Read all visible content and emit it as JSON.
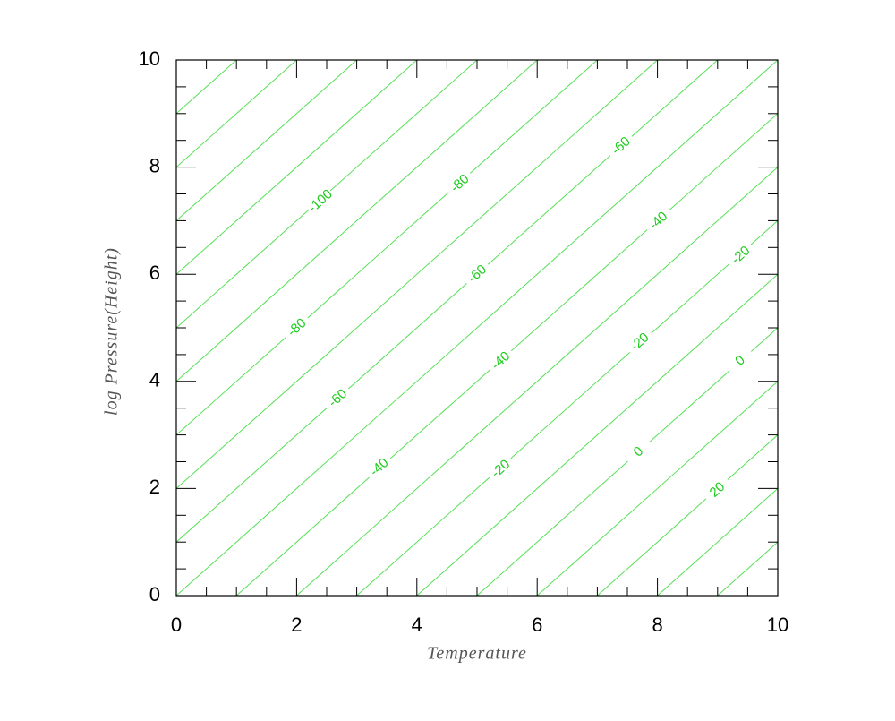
{
  "chart_data": {
    "type": "isolines",
    "xlabel": "Temperature",
    "ylabel": "log Pressure(Height)",
    "xlim": [
      0,
      10
    ],
    "ylim": [
      0,
      10
    ],
    "xticks": [
      0,
      2,
      4,
      6,
      8,
      10
    ],
    "yticks": [
      0,
      2,
      4,
      6,
      8,
      10
    ],
    "xminorticks": [
      0.5,
      1,
      1.5,
      2.5,
      3,
      3.5,
      4.5,
      5,
      5.5,
      6.5,
      7,
      7.5,
      8.5,
      9,
      9.5
    ],
    "yminorticks": [
      0.5,
      1,
      1.5,
      2.5,
      3,
      3.5,
      4.5,
      5,
      5.5,
      6.5,
      7,
      7.5,
      8.5,
      9,
      9.5
    ],
    "line_color": "#55e055",
    "label_color": "#1ccc1c",
    "lines": [
      {
        "x": [
          0,
          1
        ],
        "y": [
          9,
          10
        ]
      },
      {
        "x": [
          0,
          2
        ],
        "y": [
          8,
          10
        ]
      },
      {
        "x": [
          0,
          3
        ],
        "y": [
          7,
          10
        ]
      },
      {
        "x": [
          0,
          4
        ],
        "y": [
          6,
          10
        ]
      },
      {
        "x": [
          0,
          5
        ],
        "y": [
          5,
          10
        ]
      },
      {
        "x": [
          0,
          6
        ],
        "y": [
          4,
          10
        ]
      },
      {
        "x": [
          0,
          7
        ],
        "y": [
          3,
          10
        ]
      },
      {
        "x": [
          0,
          8
        ],
        "y": [
          2,
          10
        ]
      },
      {
        "x": [
          0,
          9
        ],
        "y": [
          1,
          10
        ]
      },
      {
        "x": [
          0,
          10
        ],
        "y": [
          0,
          10
        ]
      },
      {
        "x": [
          1,
          10
        ],
        "y": [
          0,
          9
        ]
      },
      {
        "x": [
          2,
          10
        ],
        "y": [
          0,
          8
        ]
      },
      {
        "x": [
          3,
          10
        ],
        "y": [
          0,
          7
        ]
      },
      {
        "x": [
          4,
          10
        ],
        "y": [
          0,
          6
        ]
      },
      {
        "x": [
          5,
          10
        ],
        "y": [
          0,
          5
        ]
      },
      {
        "x": [
          6,
          10
        ],
        "y": [
          0,
          4
        ]
      },
      {
        "x": [
          7,
          10
        ],
        "y": [
          0,
          3
        ]
      },
      {
        "x": [
          8,
          10
        ],
        "y": [
          0,
          2
        ]
      },
      {
        "x": [
          9,
          10
        ],
        "y": [
          0,
          1
        ]
      }
    ],
    "labels": [
      {
        "text": "-100",
        "x": 2.4,
        "y": 7.36
      },
      {
        "text": "-80",
        "x": 4.72,
        "y": 7.69
      },
      {
        "text": "-60",
        "x": 7.4,
        "y": 8.39
      },
      {
        "text": "-40",
        "x": 8.02,
        "y": 6.99
      },
      {
        "text": "-20",
        "x": 9.39,
        "y": 6.35
      },
      {
        "text": "-80",
        "x": 2.01,
        "y": 5.0
      },
      {
        "text": "-60",
        "x": 5.01,
        "y": 6.0
      },
      {
        "text": "-20",
        "x": 7.71,
        "y": 4.73
      },
      {
        "text": "0",
        "x": 9.38,
        "y": 4.38
      },
      {
        "text": "-60",
        "x": 2.69,
        "y": 3.68
      },
      {
        "text": "-40",
        "x": 5.4,
        "y": 4.38
      },
      {
        "text": "-40",
        "x": 3.38,
        "y": 2.39
      },
      {
        "text": "-20",
        "x": 5.4,
        "y": 2.36
      },
      {
        "text": "0",
        "x": 7.69,
        "y": 2.68
      },
      {
        "text": "20",
        "x": 9.0,
        "y": 1.97
      }
    ]
  }
}
